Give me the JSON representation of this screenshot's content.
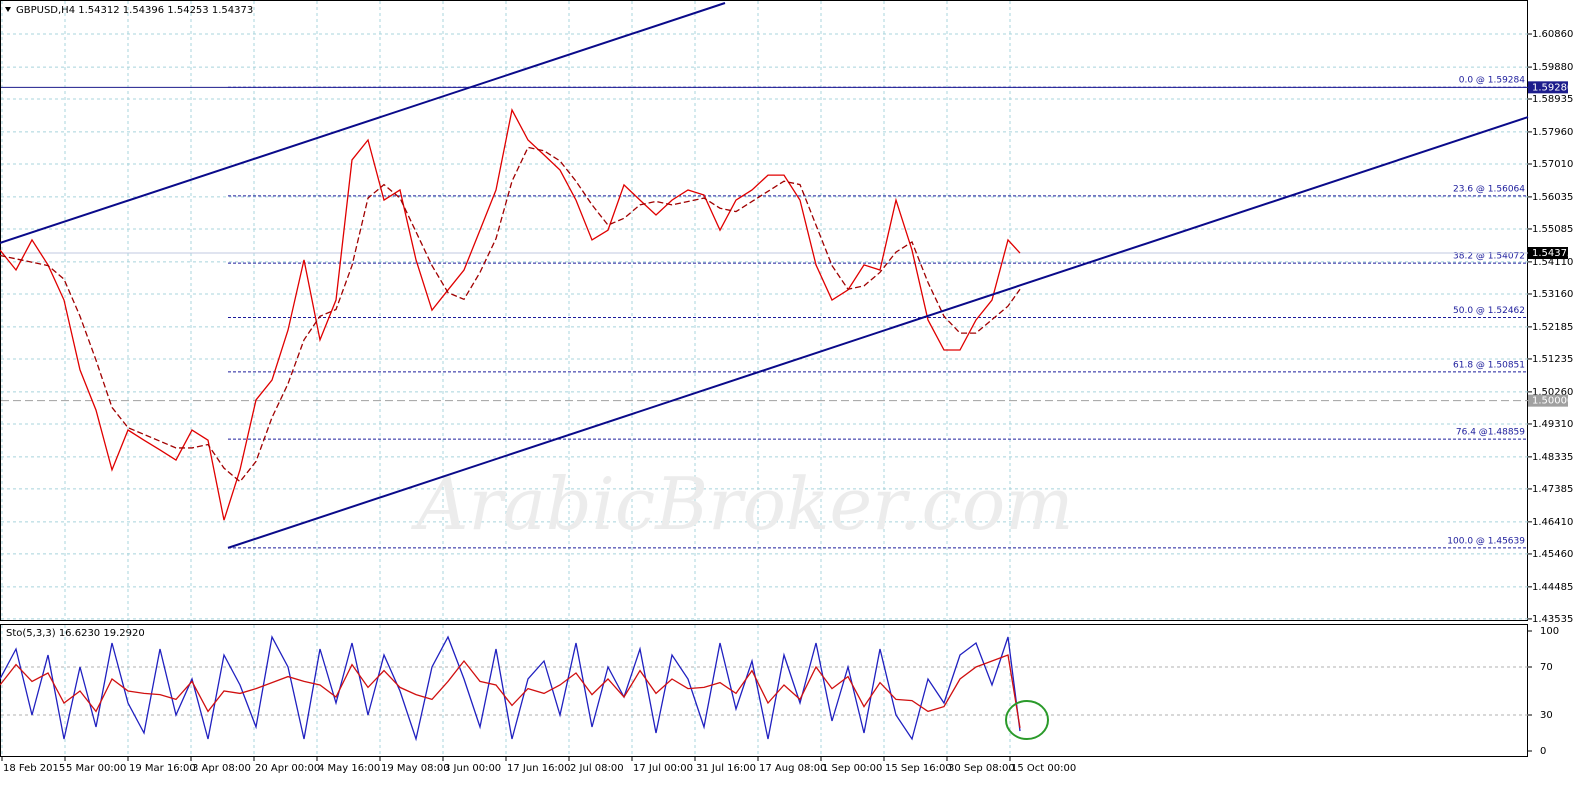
{
  "chart_data": {
    "type": "line",
    "title": "GBPUSD,H4  1.54312 1.54396 1.54253 1.54373",
    "watermark": "ArabicBroker.com",
    "xlim": [
      0,
      1528
    ],
    "xticks": [
      {
        "value": 2,
        "label": "18 Feb 2015"
      },
      {
        "value": 65,
        "label": "5 Mar 00:00"
      },
      {
        "value": 128,
        "label": "19 Mar 16:00"
      },
      {
        "value": 191,
        "label": "3 Apr 08:00"
      },
      {
        "value": 254,
        "label": "20 Apr 00:00"
      },
      {
        "value": 317,
        "label": "4 May 16:00"
      },
      {
        "value": 380,
        "label": "19 May 08:00"
      },
      {
        "value": 443,
        "label": "3 Jun 00:00"
      },
      {
        "value": 506,
        "label": "17 Jun 16:00"
      },
      {
        "value": 569,
        "label": "2 Jul 08:00"
      },
      {
        "value": 632,
        "label": "17 Jul 00:00"
      },
      {
        "value": 695,
        "label": "31 Jul 16:00"
      },
      {
        "value": 758,
        "label": "17 Aug 08:00"
      },
      {
        "value": 821,
        "label": "1 Sep 00:00"
      },
      {
        "value": 884,
        "label": "15 Sep 16:00"
      },
      {
        "value": 947,
        "label": "30 Sep 08:00"
      },
      {
        "value": 1010,
        "label": "15 Oct 00:00"
      }
    ],
    "ylim": [
      1.43503,
      1.61867
    ],
    "yticks": [
      {
        "value": 1.6086,
        "label": "1.60860"
      },
      {
        "value": 1.5988,
        "label": "1.59880"
      },
      {
        "value": 1.58935,
        "label": "1.58935"
      },
      {
        "value": 1.5796,
        "label": "1.57960"
      },
      {
        "value": 1.5701,
        "label": "1.57010"
      },
      1.56035,
      1.55085,
      {
        "value": 1.5411,
        "label": "1.54110"
      },
      {
        "value": 1.5316,
        "label": "1.53160"
      },
      1.52185,
      1.51235,
      {
        "value": 1.5026,
        "label": "1.50260"
      },
      {
        "value": 1.4931,
        "label": "1.49310"
      },
      1.48335,
      1.47385,
      {
        "value": 1.4641,
        "label": "1.46410"
      },
      {
        "value": 1.4546,
        "label": "1.45460"
      },
      1.44485,
      1.43535
    ],
    "grid": true,
    "x": [
      0,
      16,
      32,
      48,
      64,
      80,
      96,
      112,
      128,
      144,
      160,
      176,
      192,
      208,
      224,
      240,
      256,
      272,
      288,
      304,
      320,
      336,
      352,
      368,
      384,
      400,
      416,
      432,
      448,
      464,
      480,
      496,
      512,
      528,
      544,
      560,
      576,
      592,
      608,
      624,
      640,
      656,
      672,
      688,
      704,
      720,
      736,
      752,
      768,
      784,
      800,
      816,
      832,
      848,
      864,
      880,
      896,
      912,
      928,
      944,
      960,
      976,
      992,
      1008,
      1020
    ],
    "series": [
      {
        "name": "Close",
        "color": "#e00000",
        "values": [
          1.5446,
          1.5387,
          1.5476,
          1.5402,
          1.5298,
          1.5091,
          1.4972,
          1.4795,
          1.4913,
          1.4883,
          1.4854,
          1.4824,
          1.4913,
          1.4883,
          1.4646,
          1.4795,
          1.5002,
          1.5061,
          1.5209,
          1.5417,
          1.518,
          1.5298,
          1.5713,
          1.5772,
          1.5594,
          1.5624,
          1.5417,
          1.5268,
          1.5328,
          1.5387,
          1.5505,
          1.5624,
          1.5861,
          1.5772,
          1.5728,
          1.5683,
          1.5594,
          1.5476,
          1.5505,
          1.5639,
          1.5594,
          1.555,
          1.5594,
          1.5624,
          1.5609,
          1.5505,
          1.5594,
          1.5624,
          1.5668,
          1.5668,
          1.5594,
          1.5402,
          1.5298,
          1.5328,
          1.5402,
          1.5387,
          1.5594,
          1.5446,
          1.5239,
          1.515,
          1.515,
          1.5239,
          1.5298,
          1.5476,
          1.54373
        ]
      },
      {
        "name": "MA",
        "color": "#a00000",
        "values": [
          1.543,
          1.542,
          1.541,
          1.54,
          1.536,
          1.525,
          1.512,
          1.498,
          1.492,
          1.49,
          1.488,
          1.486,
          1.486,
          1.487,
          1.48,
          1.476,
          1.482,
          1.495,
          1.505,
          1.518,
          1.525,
          1.527,
          1.54,
          1.56,
          1.564,
          1.56,
          1.55,
          1.54,
          1.532,
          1.53,
          1.538,
          1.548,
          1.565,
          1.575,
          1.574,
          1.571,
          1.565,
          1.558,
          1.552,
          1.554,
          1.558,
          1.559,
          1.558,
          1.559,
          1.56,
          1.557,
          1.556,
          1.559,
          1.562,
          1.565,
          1.564,
          1.552,
          1.54,
          1.533,
          1.534,
          1.538,
          1.544,
          1.547,
          1.535,
          1.525,
          1.52,
          1.52,
          1.524,
          1.528,
          1.533
        ]
      }
    ],
    "current_price": 1.54373,
    "hlines": [
      {
        "value": 1.5928,
        "label": "1.59280",
        "color": "#1c1c8c"
      },
      {
        "value": 1.5,
        "label": "1.50000",
        "color": "#a0a0a0"
      }
    ],
    "trendlines": [
      {
        "x": [
          0,
          725
        ],
        "y": [
          1.5467,
          1.61778
        ],
        "color": "#0a0a8a"
      },
      {
        "x": [
          228,
          1528
        ],
        "y": [
          1.45639,
          1.584
        ],
        "color": "#0a0a8a"
      }
    ],
    "fibonacci": {
      "start": 228,
      "color": "#1c1c9c",
      "levels": [
        {
          "value": 1.59284,
          "label": "0.0 @ 1.59284"
        },
        {
          "value": 1.56064,
          "label": "23.6 @ 1.56064"
        },
        {
          "value": 1.54072,
          "label": "38.2 @ 1.54072"
        },
        {
          "value": 1.52462,
          "label": "50.0 @ 1.52462"
        },
        {
          "value": 1.50851,
          "label": "61.8 @ 1.50851"
        },
        {
          "value": 1.48859,
          "label": "76.4 @1.48859"
        },
        {
          "value": 1.45639,
          "label": "100.0 @ 1.45639"
        }
      ]
    },
    "stochastic": {
      "title": "Sto(5,3,3) 16.6230 19.2920",
      "ylim": [
        0,
        100
      ],
      "yticks": [
        0,
        30,
        70,
        100
      ],
      "levels": [
        30,
        70
      ],
      "series": [
        {
          "name": "Main",
          "color": "#2020c0",
          "values": [
            60,
            85,
            30,
            80,
            10,
            70,
            20,
            90,
            40,
            15,
            85,
            30,
            60,
            10,
            80,
            55,
            20,
            95,
            70,
            10,
            85,
            40,
            90,
            30,
            80,
            50,
            10,
            70,
            95,
            60,
            20,
            85,
            10,
            60,
            75,
            30,
            90,
            20,
            70,
            45,
            85,
            15,
            80,
            60,
            20,
            90,
            35,
            75,
            10,
            80,
            40,
            90,
            25,
            70,
            15,
            85,
            30,
            10,
            60,
            40,
            80,
            90,
            55,
            95,
            16.623
          ]
        },
        {
          "name": "Signal",
          "color": "#d01010",
          "values": [
            55,
            72,
            58,
            65,
            40,
            50,
            33,
            60,
            50,
            48,
            47,
            43,
            58,
            33,
            50,
            48,
            52,
            57,
            62,
            58,
            55,
            45,
            72,
            53,
            67,
            53,
            47,
            43,
            58,
            75,
            58,
            55,
            38,
            52,
            48,
            55,
            65,
            47,
            60,
            45,
            67,
            48,
            60,
            52,
            53,
            57,
            48,
            67,
            40,
            55,
            43,
            70,
            52,
            62,
            37,
            57,
            43,
            42,
            33,
            37,
            60,
            70,
            75,
            80,
            19.292
          ]
        }
      ]
    }
  }
}
